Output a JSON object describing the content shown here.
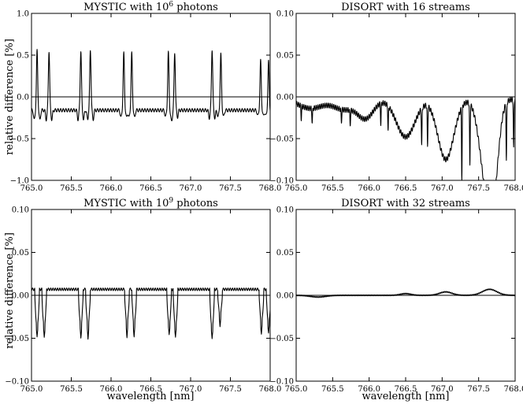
{
  "figure": {
    "ylabel": "relative difference [%]",
    "xlabel": "wavelength [nm]"
  },
  "chart_data": [
    {
      "type": "line",
      "title": "MYSTIC with 10",
      "title_sup": "6",
      "title_rest": " photons",
      "xlabel": "",
      "ylabel": "relative difference [%]",
      "xlim": [
        765.0,
        768.0
      ],
      "ylim": [
        -1.0,
        1.0
      ],
      "xticks": [
        "765.0",
        "765.5",
        "766.0",
        "766.5",
        "767.0",
        "767.5",
        "768.0"
      ],
      "yticks": [
        "1.0",
        "0.5",
        "0.0",
        "−0.5",
        "−1.0"
      ],
      "baseline": -0.16,
      "lines": [
        {
          "x": 765.07,
          "peak": 0.55,
          "dip": -0.28,
          "w": 0.025
        },
        {
          "x": 765.22,
          "peak": 0.55,
          "dip": -0.27,
          "w": 0.025
        },
        {
          "x": 765.62,
          "peak": 0.55,
          "dip": -0.27,
          "w": 0.025
        },
        {
          "x": 765.74,
          "peak": 0.56,
          "dip": -0.27,
          "w": 0.025
        },
        {
          "x": 766.16,
          "peak": 0.52,
          "dip": -0.25,
          "w": 0.025
        },
        {
          "x": 766.26,
          "peak": 0.52,
          "dip": -0.25,
          "w": 0.025
        },
        {
          "x": 766.72,
          "peak": 0.53,
          "dip": -0.24,
          "w": 0.025
        },
        {
          "x": 766.8,
          "peak": 0.53,
          "dip": -0.24,
          "w": 0.025
        },
        {
          "x": 767.27,
          "peak": 0.57,
          "dip": -0.25,
          "w": 0.025
        },
        {
          "x": 767.38,
          "peak": 0.51,
          "dip": -0.24,
          "w": 0.025
        },
        {
          "x": 767.88,
          "peak": 0.43,
          "dip": -0.23,
          "w": 0.025
        },
        {
          "x": 767.98,
          "peak": 0.42,
          "dip": -0.23,
          "w": 0.025
        }
      ]
    },
    {
      "type": "line",
      "title": "DISORT with 16 streams",
      "title_sup": "",
      "title_rest": "",
      "xlabel": "",
      "ylabel": "",
      "xlim": [
        765.0,
        768.0
      ],
      "ylim": [
        -0.1,
        0.1
      ],
      "xticks": [
        "765.0",
        "765.5",
        "766.0",
        "766.5",
        "767.0",
        "767.5",
        "768.0"
      ],
      "yticks": [
        "0.10",
        "0.05",
        "0.00",
        "−0.05",
        "−0.10"
      ],
      "wells": [
        {
          "x": 765.2,
          "depth": -0.012,
          "w": 0.18
        },
        {
          "x": 765.65,
          "depth": -0.013,
          "w": 0.15
        },
        {
          "x": 765.95,
          "depth": -0.025,
          "w": 0.12
        },
        {
          "x": 766.5,
          "depth": -0.05,
          "w": 0.14
        },
        {
          "x": 767.05,
          "depth": -0.08,
          "w": 0.12
        },
        {
          "x": 767.6,
          "depth": -0.097,
          "w": 0.1
        },
        {
          "x": 767.7,
          "depth": -0.092,
          "w": 0.08
        }
      ],
      "spikes": [
        {
          "x": 765.07,
          "y": -0.015
        },
        {
          "x": 765.22,
          "y": -0.018
        },
        {
          "x": 765.62,
          "y": -0.015
        },
        {
          "x": 765.74,
          "y": -0.018
        },
        {
          "x": 766.16,
          "y": -0.025
        },
        {
          "x": 766.26,
          "y": -0.03
        },
        {
          "x": 766.72,
          "y": -0.045
        },
        {
          "x": 766.8,
          "y": -0.05
        },
        {
          "x": 767.27,
          "y": -0.085
        },
        {
          "x": 767.38,
          "y": -0.075
        },
        {
          "x": 767.88,
          "y": -0.07
        },
        {
          "x": 767.98,
          "y": -0.06
        }
      ]
    },
    {
      "type": "line",
      "title": "MYSTIC with 10",
      "title_sup": "9",
      "title_rest": " photons",
      "xlabel": "wavelength [nm]",
      "ylabel": "relative difference [%]",
      "xlim": [
        765.0,
        768.0
      ],
      "ylim": [
        -0.1,
        0.1
      ],
      "xticks": [
        "765.0",
        "765.5",
        "766.0",
        "766.5",
        "767.0",
        "767.5",
        "768.0"
      ],
      "yticks": [
        "0.10",
        "0.05",
        "0.00",
        "−0.05",
        "−0.10"
      ],
      "baseline": 0.007,
      "lines": [
        {
          "x": 765.07,
          "dip": -0.05,
          "w": 0.03
        },
        {
          "x": 765.16,
          "dip": -0.05,
          "w": 0.03
        },
        {
          "x": 765.62,
          "dip": -0.05,
          "w": 0.03
        },
        {
          "x": 765.71,
          "dip": -0.05,
          "w": 0.03
        },
        {
          "x": 766.2,
          "dip": -0.048,
          "w": 0.03
        },
        {
          "x": 766.29,
          "dip": -0.048,
          "w": 0.03
        },
        {
          "x": 766.73,
          "dip": -0.047,
          "w": 0.03
        },
        {
          "x": 766.81,
          "dip": -0.05,
          "w": 0.03
        },
        {
          "x": 767.27,
          "dip": -0.052,
          "w": 0.03
        },
        {
          "x": 767.37,
          "dip": -0.035,
          "w": 0.03
        },
        {
          "x": 767.89,
          "dip": -0.045,
          "w": 0.03
        },
        {
          "x": 767.98,
          "dip": -0.045,
          "w": 0.03
        }
      ]
    },
    {
      "type": "line",
      "title": "DISORT with 32 streams",
      "title_sup": "",
      "title_rest": "",
      "xlabel": "wavelength [nm]",
      "ylabel": "",
      "xlim": [
        765.0,
        768.0
      ],
      "ylim": [
        -0.1,
        0.1
      ],
      "xticks": [
        "765.0",
        "765.5",
        "766.0",
        "766.5",
        "767.0",
        "767.5",
        "768.0"
      ],
      "yticks": [
        "0.10",
        "0.05",
        "0.00",
        "−0.05",
        "−0.10"
      ],
      "bumps": [
        {
          "x": 765.3,
          "h": -0.002,
          "w": 0.15
        },
        {
          "x": 766.5,
          "h": 0.002,
          "w": 0.1
        },
        {
          "x": 767.05,
          "h": 0.004,
          "w": 0.12
        },
        {
          "x": 767.65,
          "h": 0.007,
          "w": 0.14
        }
      ]
    }
  ]
}
